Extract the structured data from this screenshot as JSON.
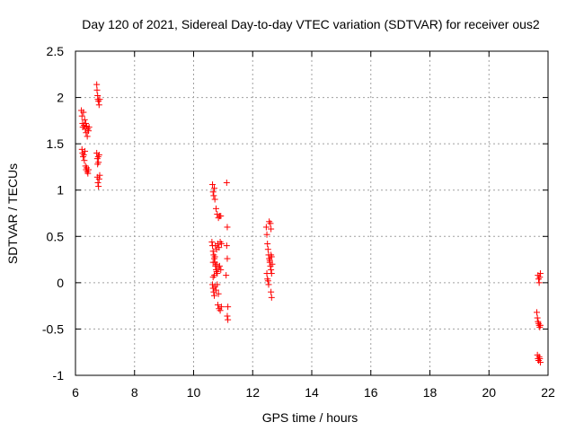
{
  "chart_data": {
    "type": "scatter",
    "title": "Day 120 of 2021, Sidereal Day-to-day VTEC variation (SDTVAR) for receiver ous2",
    "xlabel": "GPS time / hours",
    "ylabel": "SDTVAR / TECUs",
    "xlim": [
      6,
      22
    ],
    "ylim": [
      -1,
      2.5
    ],
    "xticks": [
      6,
      8,
      10,
      12,
      14,
      16,
      18,
      20,
      22
    ],
    "xtick_labels": [
      "6",
      "8",
      "10",
      "12",
      "14",
      "16",
      "18",
      "20",
      "22"
    ],
    "yticks": [
      -1,
      -0.5,
      0,
      0.5,
      1,
      1.5,
      2,
      2.5
    ],
    "ytick_labels": [
      "-1",
      "-0.5",
      "0",
      "0.5",
      "1",
      "1.5",
      "2",
      "2.5"
    ],
    "grid": true,
    "marker": "+",
    "color": "#ff0000",
    "series": [
      {
        "name": "SDTVAR",
        "points": [
          [
            6.2,
            1.86
          ],
          [
            6.22,
            1.8
          ],
          [
            6.24,
            1.72
          ],
          [
            6.25,
            1.68
          ],
          [
            6.27,
            1.84
          ],
          [
            6.29,
            1.7
          ],
          [
            6.31,
            1.76
          ],
          [
            6.33,
            1.66
          ],
          [
            6.35,
            1.72
          ],
          [
            6.36,
            1.62
          ],
          [
            6.38,
            1.69
          ],
          [
            6.4,
            1.58
          ],
          [
            6.42,
            1.66
          ],
          [
            6.44,
            1.64
          ],
          [
            6.46,
            1.68
          ],
          [
            6.22,
            1.44
          ],
          [
            6.24,
            1.4
          ],
          [
            6.26,
            1.36
          ],
          [
            6.28,
            1.38
          ],
          [
            6.3,
            1.32
          ],
          [
            6.32,
            1.42
          ],
          [
            6.34,
            1.26
          ],
          [
            6.36,
            1.22
          ],
          [
            6.38,
            1.24
          ],
          [
            6.4,
            1.2
          ],
          [
            6.42,
            1.18
          ],
          [
            6.44,
            1.22
          ],
          [
            6.72,
            2.14
          ],
          [
            6.73,
            2.08
          ],
          [
            6.75,
            2.02
          ],
          [
            6.76,
            1.98
          ],
          [
            6.78,
            1.96
          ],
          [
            6.8,
            1.92
          ],
          [
            6.82,
            1.98
          ],
          [
            6.72,
            1.4
          ],
          [
            6.74,
            1.34
          ],
          [
            6.75,
            1.28
          ],
          [
            6.77,
            1.36
          ],
          [
            6.78,
            1.3
          ],
          [
            6.8,
            1.38
          ],
          [
            6.74,
            1.14
          ],
          [
            6.76,
            1.08
          ],
          [
            6.78,
            1.04
          ],
          [
            6.8,
            1.12
          ],
          [
            6.82,
            1.16
          ],
          [
            10.64,
            1.06
          ],
          [
            10.66,
            0.98
          ],
          [
            10.68,
            0.94
          ],
          [
            10.7,
            1.02
          ],
          [
            10.72,
            0.9
          ],
          [
            10.76,
            0.8
          ],
          [
            10.8,
            0.74
          ],
          [
            10.84,
            0.7
          ],
          [
            10.88,
            0.72
          ],
          [
            10.92,
            0.72
          ],
          [
            10.62,
            0.44
          ],
          [
            10.64,
            0.4
          ],
          [
            10.66,
            0.34
          ],
          [
            10.68,
            0.3
          ],
          [
            10.7,
            0.26
          ],
          [
            10.72,
            0.22
          ],
          [
            10.74,
            0.18
          ],
          [
            10.76,
            0.14
          ],
          [
            10.78,
            0.12
          ],
          [
            10.8,
            0.1
          ],
          [
            10.66,
            0.06
          ],
          [
            10.7,
            0.08
          ],
          [
            10.74,
            0.4
          ],
          [
            10.78,
            0.36
          ],
          [
            10.82,
            0.42
          ],
          [
            10.86,
            0.38
          ],
          [
            10.9,
            0.44
          ],
          [
            10.94,
            0.42
          ],
          [
            10.66,
            0.22
          ],
          [
            10.72,
            0.28
          ],
          [
            10.78,
            0.2
          ],
          [
            10.84,
            0.16
          ],
          [
            10.88,
            0.18
          ],
          [
            10.92,
            0.14
          ],
          [
            10.64,
            -0.02
          ],
          [
            10.66,
            -0.06
          ],
          [
            10.68,
            -0.1
          ],
          [
            10.7,
            -0.14
          ],
          [
            10.72,
            -0.04
          ],
          [
            10.76,
            -0.08
          ],
          [
            10.8,
            -0.02
          ],
          [
            10.84,
            -0.12
          ],
          [
            10.82,
            -0.24
          ],
          [
            10.86,
            -0.28
          ],
          [
            10.9,
            -0.3
          ],
          [
            10.94,
            -0.26
          ],
          [
            11.12,
            1.08
          ],
          [
            11.14,
            0.6
          ],
          [
            11.12,
            0.4
          ],
          [
            11.14,
            0.26
          ],
          [
            11.1,
            0.08
          ],
          [
            11.16,
            -0.26
          ],
          [
            11.14,
            -0.36
          ],
          [
            11.16,
            -0.4
          ],
          [
            12.46,
            0.6
          ],
          [
            12.48,
            0.52
          ],
          [
            12.5,
            0.42
          ],
          [
            12.52,
            0.36
          ],
          [
            12.54,
            0.3
          ],
          [
            12.56,
            0.26
          ],
          [
            12.58,
            0.22
          ],
          [
            12.6,
            0.18
          ],
          [
            12.62,
            0.14
          ],
          [
            12.48,
            0.1
          ],
          [
            12.5,
            0.04
          ],
          [
            12.52,
            0.02
          ],
          [
            12.54,
            -0.02
          ],
          [
            12.58,
            0.24
          ],
          [
            12.62,
            0.3
          ],
          [
            12.64,
            0.28
          ],
          [
            12.66,
            0.2
          ],
          [
            12.56,
            0.66
          ],
          [
            12.6,
            0.64
          ],
          [
            12.62,
            0.58
          ],
          [
            12.64,
            0.1
          ],
          [
            12.62,
            -0.1
          ],
          [
            12.64,
            -0.16
          ],
          [
            21.66,
            0.08
          ],
          [
            21.68,
            0.04
          ],
          [
            21.7,
            0.0
          ],
          [
            21.72,
            0.06
          ],
          [
            21.74,
            0.1
          ],
          [
            21.62,
            -0.32
          ],
          [
            21.64,
            -0.38
          ],
          [
            21.66,
            -0.42
          ],
          [
            21.68,
            -0.44
          ],
          [
            21.7,
            -0.46
          ],
          [
            21.72,
            -0.48
          ],
          [
            21.74,
            -0.46
          ],
          [
            21.64,
            -0.78
          ],
          [
            21.66,
            -0.82
          ],
          [
            21.68,
            -0.84
          ],
          [
            21.7,
            -0.8
          ],
          [
            21.72,
            -0.82
          ],
          [
            21.74,
            -0.86
          ]
        ]
      }
    ]
  }
}
